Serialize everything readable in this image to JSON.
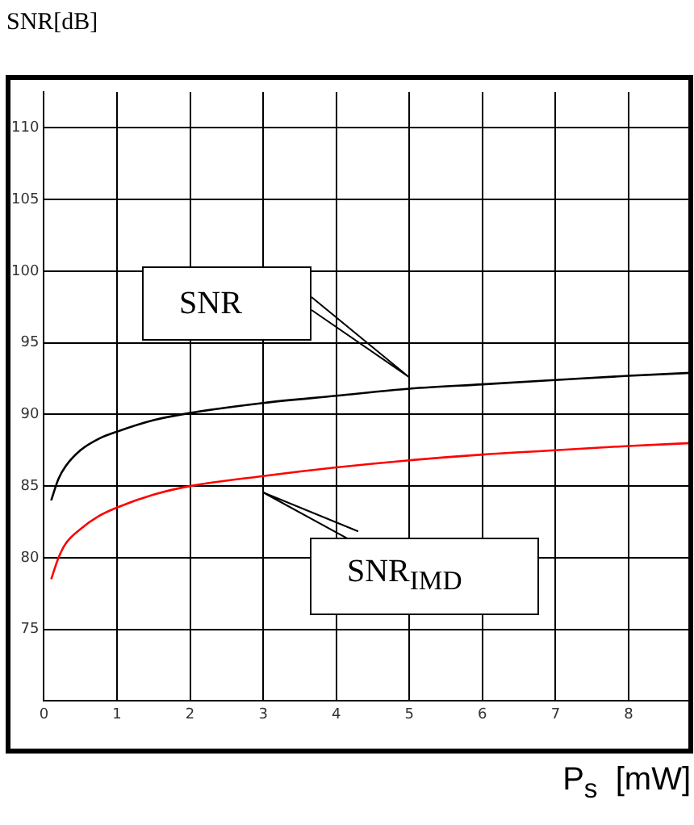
{
  "chart_data": {
    "type": "line",
    "xlabel": "P$_{s}$  [mW]",
    "ylabel": "SNR[dB]",
    "xlim": [
      0,
      8.85
    ],
    "xticks": [
      0,
      1,
      2,
      3,
      4,
      5,
      6,
      7,
      8
    ],
    "ylim": [
      70,
      112.5
    ],
    "yticks": [
      75,
      80,
      85,
      90,
      95,
      100,
      105,
      110
    ],
    "grid": true,
    "legend": false,
    "marker": "none",
    "line_style": "solid",
    "series": [
      {
        "name": "SNR",
        "color": "#000000",
        "x": [
          0.1,
          0.2,
          0.3,
          0.5,
          0.75,
          1,
          1.5,
          2,
          3,
          4,
          5,
          6,
          7,
          8,
          8.85
        ],
        "values": [
          84,
          85.5,
          86.4,
          87.5,
          88.3,
          88.8,
          89.6,
          90.1,
          90.8,
          91.3,
          91.8,
          92.1,
          92.4,
          92.7,
          92.9
        ]
      },
      {
        "name": "SNR$_{IMD}$",
        "color": "#ff0000",
        "x": [
          0.1,
          0.2,
          0.3,
          0.5,
          0.75,
          1,
          1.5,
          2,
          3,
          4,
          5,
          6,
          7,
          8,
          8.85
        ],
        "values": [
          78.5,
          80,
          81,
          82,
          82.9,
          83.5,
          84.4,
          85,
          85.7,
          86.3,
          86.8,
          87.2,
          87.5,
          87.8,
          88
        ]
      }
    ]
  }
}
